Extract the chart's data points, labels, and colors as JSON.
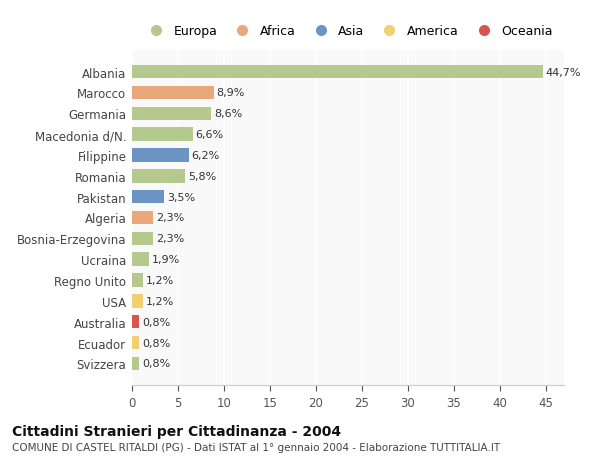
{
  "countries": [
    "Albania",
    "Marocco",
    "Germania",
    "Macedonia d/N.",
    "Filippine",
    "Romania",
    "Pakistan",
    "Algeria",
    "Bosnia-Erzegovina",
    "Ucraina",
    "Regno Unito",
    "USA",
    "Australia",
    "Ecuador",
    "Svizzera"
  ],
  "values": [
    44.7,
    8.9,
    8.6,
    6.6,
    6.2,
    5.8,
    3.5,
    2.3,
    2.3,
    1.9,
    1.2,
    1.2,
    0.8,
    0.8,
    0.8
  ],
  "labels": [
    "44,7%",
    "8,9%",
    "8,6%",
    "6,6%",
    "6,2%",
    "5,8%",
    "3,5%",
    "2,3%",
    "2,3%",
    "1,9%",
    "1,2%",
    "1,2%",
    "0,8%",
    "0,8%",
    "0,8%"
  ],
  "continents": [
    "Europa",
    "Africa",
    "Europa",
    "Europa",
    "Asia",
    "Europa",
    "Asia",
    "Africa",
    "Europa",
    "Europa",
    "Europa",
    "America",
    "Oceania",
    "America",
    "Europa"
  ],
  "continent_colors": {
    "Europa": "#b5c98e",
    "Africa": "#e8a87c",
    "Asia": "#6b93c4",
    "America": "#f0d070",
    "Oceania": "#d9534f"
  },
  "legend_order": [
    "Europa",
    "Africa",
    "Asia",
    "America",
    "Oceania"
  ],
  "title": "Cittadini Stranieri per Cittadinanza - 2004",
  "subtitle": "COMUNE DI CASTEL RITALDI (PG) - Dati ISTAT al 1° gennaio 2004 - Elaborazione TUTTITALIA.IT",
  "xlim": [
    0,
    47
  ],
  "xticks": [
    0,
    5,
    10,
    15,
    20,
    25,
    30,
    35,
    40,
    45
  ],
  "background_color": "#ffffff",
  "plot_bg_color": "#f9f9f9"
}
